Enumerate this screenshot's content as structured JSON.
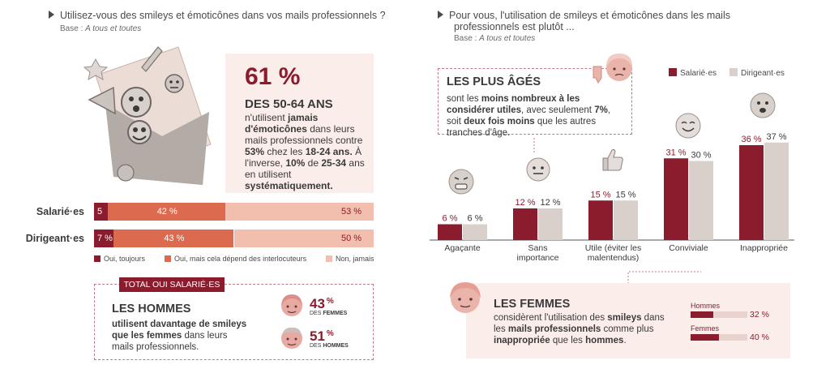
{
  "left": {
    "question": "Utilisez-vous des smileys et émoticônes dans vos mails professionnels ?",
    "base_label": "Base : ",
    "base_value": "A tous et toutes",
    "stat": {
      "pct": "61 %",
      "group": "DES 50-64 ANS",
      "t1": "n'utilisent ",
      "t2": "jamais d'émoticônes",
      "t3": " dans leurs mails professionnels contre ",
      "t4": "53%",
      "t5": " chez les ",
      "t6": "18-24 ans.",
      "t7": " À l'inverse, ",
      "t8": "10%",
      "t9": " de ",
      "t10": "25-34",
      "t11": " ans en utilisent ",
      "t12": "systématiquement."
    },
    "stacked": {
      "rows": [
        {
          "label": "Salarié·es",
          "values": [
            5,
            42,
            53
          ],
          "labels": [
            "5 %",
            "42 %",
            "53 %"
          ]
        },
        {
          "label": "Dirigeant·es",
          "values": [
            7,
            43,
            50
          ],
          "labels": [
            "7 %",
            "43 %",
            "50 %"
          ]
        }
      ],
      "legend": [
        "Oui, toujours",
        "Oui, mais cela dépend des interlocuteurs",
        "Non, jamais"
      ],
      "colors": [
        "#8a1c2e",
        "#dc6a4e",
        "#f2bfae"
      ]
    },
    "total_box": {
      "tag": "TOTAL OUI SALARIÉ·ES",
      "title": "LES HOMMES",
      "b1": "utilisent davantage de smileys que les femmes",
      "t1": " dans leurs mails professionnels.",
      "women_pct": "43",
      "women_unit": "%",
      "women_label_pre": "DES ",
      "women_label": "FEMMES",
      "men_pct": "51",
      "men_unit": "%",
      "men_label_pre": "DES ",
      "men_label": "HOMMES"
    }
  },
  "right": {
    "question_l1": "Pour vous, l'utilisation de smileys et émoticônes dans les mails",
    "question_l2": "professionnels est plutôt ...",
    "base_label": "Base : ",
    "base_value": "A tous et toutes",
    "aged": {
      "title": "LES PLUS ÂGÉS",
      "t1": "sont les ",
      "b1": "moins nombreux à les considérer utiles",
      "t2": ", avec seulement ",
      "b2": "7%",
      "t3": ", soit ",
      "b3": "deux fois moins",
      "t4": " que les autres tranches d'âge."
    },
    "women": {
      "title": "LES FEMMES",
      "t1": "considèrent l'utilisation des ",
      "b1": "smileys",
      "t2": " dans les ",
      "b2": "mails professionnels",
      "t3": " comme plus ",
      "b3": "inappropriée",
      "t4": " que les ",
      "b4": "hommes",
      "t5": ".",
      "mini": [
        {
          "label": "Hommes",
          "value": 32,
          "text": "32 %"
        },
        {
          "label": "Femmes",
          "value": 40,
          "text": "40 %"
        }
      ]
    }
  },
  "chart_data": {
    "type": "bar",
    "categories": [
      "Agaçante",
      "Sans importance",
      "Utile (éviter les malentendus)",
      "Conviviale",
      "Inappropriée"
    ],
    "category_lines": [
      [
        "Agaçante"
      ],
      [
        "Sans",
        "importance"
      ],
      [
        "Utile (éviter les",
        "malentendus)"
      ],
      [
        "Conviviale"
      ],
      [
        "Inappropriée"
      ]
    ],
    "series": [
      {
        "name": "Salarié·es",
        "values": [
          6,
          12,
          15,
          31,
          36
        ],
        "color": "#8a1c2e"
      },
      {
        "name": "Dirigeant·es",
        "values": [
          6,
          12,
          15,
          30,
          37
        ],
        "color": "#d9d0cc"
      }
    ],
    "value_labels": [
      [
        "6 %",
        "12 %",
        "15 %",
        "31 %",
        "36 %"
      ],
      [
        "6 %",
        "12 %",
        "15 %",
        "30 %",
        "37 %"
      ]
    ],
    "ylim": [
      0,
      40
    ],
    "legend_position": "top-right"
  }
}
